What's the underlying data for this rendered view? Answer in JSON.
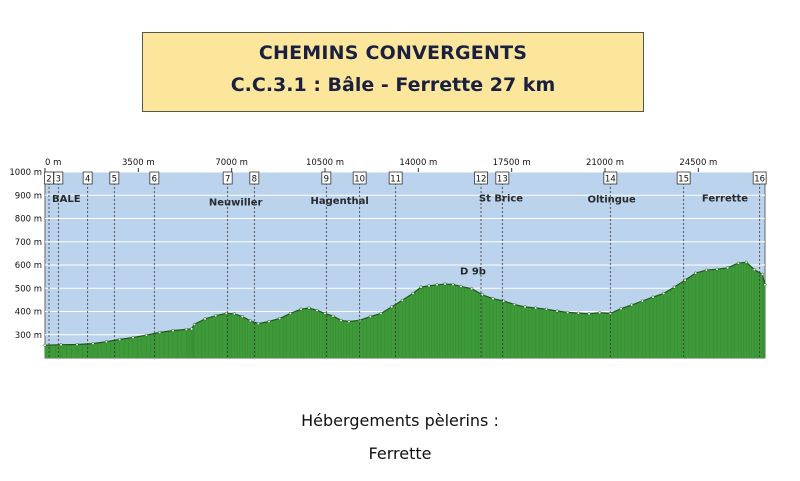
{
  "header": {
    "title": "CHEMINS CONVERGENTS",
    "subtitle": "C.C.3.1 :  Bâle - Ferrette  27 km"
  },
  "footer": {
    "label": "Hébergements pèlerins :",
    "place": "Ferrette"
  },
  "chart_data": {
    "type": "area",
    "title": "",
    "xlabel": "",
    "ylabel": "",
    "x_unit": "m",
    "y_unit": "m",
    "xlim": [
      0,
      27000
    ],
    "ylim": [
      200,
      1000
    ],
    "grid": true,
    "x_ticks": [
      {
        "value": 0,
        "label": "0 m"
      },
      {
        "value": 3500,
        "label": "3500 m"
      },
      {
        "value": 7000,
        "label": "7000 m"
      },
      {
        "value": 10500,
        "label": "10500 m"
      },
      {
        "value": 14000,
        "label": "14000 m"
      },
      {
        "value": 17500,
        "label": "17500 m"
      },
      {
        "value": 21000,
        "label": "21000 m"
      },
      {
        "value": 24500,
        "label": "24500 m"
      }
    ],
    "y_ticks": [
      {
        "value": 300,
        "label": "300 m"
      },
      {
        "value": 400,
        "label": "400 m"
      },
      {
        "value": 500,
        "label": "500 m"
      },
      {
        "value": 600,
        "label": "600 m"
      },
      {
        "value": 700,
        "label": "700 m"
      },
      {
        "value": 800,
        "label": "800 m"
      },
      {
        "value": 900,
        "label": "900 m"
      },
      {
        "value": 1000,
        "label": "1000 m"
      }
    ],
    "waypoints": [
      {
        "id": "2",
        "x": 150
      },
      {
        "id": "3",
        "x": 500
      },
      {
        "id": "4",
        "x": 1600
      },
      {
        "id": "5",
        "x": 2600
      },
      {
        "id": "6",
        "x": 4100
      },
      {
        "id": "7",
        "x": 6850
      },
      {
        "id": "8",
        "x": 7850
      },
      {
        "id": "9",
        "x": 10550
      },
      {
        "id": "10",
        "x": 11800
      },
      {
        "id": "11",
        "x": 13150
      },
      {
        "id": "12",
        "x": 16350
      },
      {
        "id": "13",
        "x": 17150
      },
      {
        "id": "14",
        "x": 21200
      },
      {
        "id": "15",
        "x": 23950
      },
      {
        "id": "16",
        "x": 26800
      }
    ],
    "place_labels": [
      {
        "text": "BALE",
        "x": 800,
        "y": 870
      },
      {
        "text": "Neuwiller",
        "x": 7150,
        "y": 855
      },
      {
        "text": "Hagenthal",
        "x": 11050,
        "y": 862
      },
      {
        "text": "D 9b",
        "x": 16050,
        "y": 560
      },
      {
        "text": "St Brice",
        "x": 17100,
        "y": 873
      },
      {
        "text": "Oltingue",
        "x": 21250,
        "y": 868
      },
      {
        "text": "Ferrette",
        "x": 25500,
        "y": 873
      }
    ],
    "colors": {
      "sky": "#bcd3ee",
      "fill": "#3f9a3a",
      "fill_dark": "#2f7f2c",
      "outline": "#1f5a1d",
      "grid": "#ffffff",
      "waypoint_line": "#333333"
    },
    "profile": [
      [
        0,
        255
      ],
      [
        600,
        257
      ],
      [
        1200,
        258
      ],
      [
        1800,
        262
      ],
      [
        2300,
        270
      ],
      [
        2800,
        280
      ],
      [
        3300,
        288
      ],
      [
        3800,
        298
      ],
      [
        4300,
        310
      ],
      [
        4800,
        318
      ],
      [
        5300,
        323
      ],
      [
        5500,
        325
      ],
      [
        5600,
        345
      ],
      [
        6000,
        368
      ],
      [
        6400,
        382
      ],
      [
        6800,
        392
      ],
      [
        7100,
        390
      ],
      [
        7400,
        378
      ],
      [
        7700,
        360
      ],
      [
        8000,
        348
      ],
      [
        8400,
        357
      ],
      [
        8800,
        370
      ],
      [
        9200,
        392
      ],
      [
        9600,
        410
      ],
      [
        9900,
        415
      ],
      [
        10200,
        405
      ],
      [
        10500,
        392
      ],
      [
        10800,
        380
      ],
      [
        11100,
        362
      ],
      [
        11400,
        357
      ],
      [
        11800,
        362
      ],
      [
        12200,
        378
      ],
      [
        12600,
        392
      ],
      [
        13000,
        420
      ],
      [
        13400,
        448
      ],
      [
        13800,
        478
      ],
      [
        14100,
        505
      ],
      [
        14400,
        510
      ],
      [
        14700,
        515
      ],
      [
        15000,
        518
      ],
      [
        15300,
        516
      ],
      [
        15600,
        508
      ],
      [
        16000,
        498
      ],
      [
        16400,
        472
      ],
      [
        16800,
        455
      ],
      [
        17200,
        445
      ],
      [
        17600,
        430
      ],
      [
        18000,
        420
      ],
      [
        18400,
        415
      ],
      [
        18800,
        410
      ],
      [
        19200,
        402
      ],
      [
        19600,
        396
      ],
      [
        20000,
        393
      ],
      [
        20400,
        390
      ],
      [
        20800,
        395
      ],
      [
        21200,
        392
      ],
      [
        21600,
        412
      ],
      [
        22000,
        428
      ],
      [
        22400,
        445
      ],
      [
        22800,
        462
      ],
      [
        23200,
        478
      ],
      [
        23600,
        505
      ],
      [
        24000,
        535
      ],
      [
        24400,
        565
      ],
      [
        24800,
        578
      ],
      [
        25200,
        582
      ],
      [
        25600,
        588
      ],
      [
        26000,
        608
      ],
      [
        26300,
        612
      ],
      [
        26600,
        580
      ],
      [
        26900,
        560
      ],
      [
        27000,
        515
      ]
    ]
  }
}
